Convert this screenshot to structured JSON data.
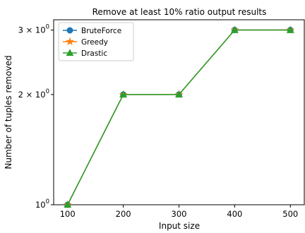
{
  "chart_data": {
    "type": "line",
    "title": "Remove at least 10% ratio output results",
    "xlabel": "Input size",
    "ylabel": "Number of tuples removed",
    "yscale": "log",
    "x": [
      100,
      200,
      300,
      400,
      500
    ],
    "xlim": [
      75,
      525
    ],
    "ylim": [
      1.0,
      3.2
    ],
    "xticks": [
      "100",
      "200",
      "300",
      "400",
      "500"
    ],
    "yticks": [
      {
        "value": 1,
        "mantissa": "",
        "exponent": "0"
      },
      {
        "value": 2,
        "mantissa": "2 × ",
        "exponent": "0"
      },
      {
        "value": 3,
        "mantissa": "3 × ",
        "exponent": "0"
      }
    ],
    "series": [
      {
        "name": "BruteForce",
        "values": [
          1,
          2,
          2,
          3,
          3
        ],
        "color": "#1f77b4",
        "marker": "circle"
      },
      {
        "name": "Greedy",
        "values": [
          1,
          2,
          2,
          3,
          3
        ],
        "color": "#ff7f0e",
        "marker": "star"
      },
      {
        "name": "Drastic",
        "values": [
          1,
          2,
          2,
          3,
          3
        ],
        "color": "#2ca02c",
        "marker": "triangle"
      }
    ],
    "legend_position": "top-left",
    "grid": false
  }
}
